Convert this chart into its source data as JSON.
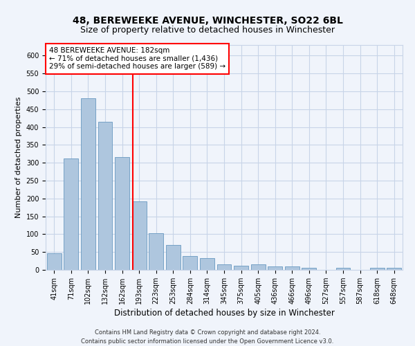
{
  "title": "48, BEREWEEKE AVENUE, WINCHESTER, SO22 6BL",
  "subtitle": "Size of property relative to detached houses in Winchester",
  "xlabel": "Distribution of detached houses by size in Winchester",
  "ylabel": "Number of detached properties",
  "categories": [
    "41sqm",
    "71sqm",
    "102sqm",
    "132sqm",
    "162sqm",
    "193sqm",
    "223sqm",
    "253sqm",
    "284sqm",
    "314sqm",
    "345sqm",
    "375sqm",
    "405sqm",
    "436sqm",
    "466sqm",
    "496sqm",
    "527sqm",
    "557sqm",
    "587sqm",
    "618sqm",
    "648sqm"
  ],
  "values": [
    46,
    312,
    480,
    415,
    315,
    192,
    103,
    70,
    38,
    32,
    15,
    12,
    15,
    10,
    9,
    5,
    0,
    5,
    0,
    5,
    5
  ],
  "bar_color": "#aec6de",
  "bar_edge_color": "#6899c0",
  "annotation_text_line1": "48 BEREWEEKE AVENUE: 182sqm",
  "annotation_text_line2": "← 71% of detached houses are smaller (1,436)",
  "annotation_text_line3": "29% of semi-detached houses are larger (589) →",
  "annotation_box_color": "white",
  "annotation_box_edge_color": "red",
  "vline_color": "red",
  "ylim": [
    0,
    630
  ],
  "yticks": [
    0,
    50,
    100,
    150,
    200,
    250,
    300,
    350,
    400,
    450,
    500,
    550,
    600
  ],
  "footer_line1": "Contains HM Land Registry data © Crown copyright and database right 2024.",
  "footer_line2": "Contains public sector information licensed under the Open Government Licence v3.0.",
  "background_color": "#f0f4fb",
  "grid_color": "#c8d4e8",
  "title_fontsize": 10,
  "subtitle_fontsize": 9,
  "xlabel_fontsize": 8.5,
  "ylabel_fontsize": 8,
  "tick_fontsize": 7,
  "annotation_fontsize": 7.5,
  "footer_fontsize": 6
}
